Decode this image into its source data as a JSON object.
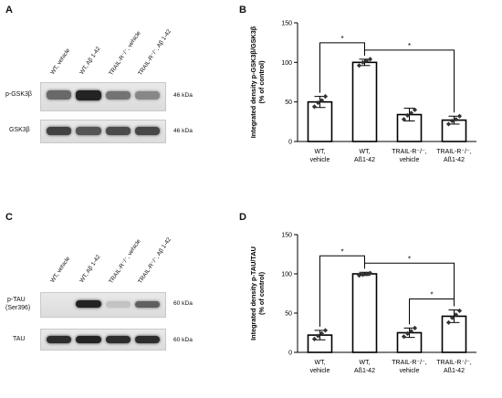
{
  "panels": {
    "a": {
      "letter": "A",
      "lanes": [
        "WT, vehicle",
        "WT, Aβ 1-42",
        "TRAIL-R⁻/⁻, vehicle",
        "TRAIL-R⁻/⁻, Aβ 1-42"
      ],
      "rows": [
        {
          "label": "p-GSK3β",
          "kda": "46 kDa",
          "band_intensity": [
            0.55,
            0.9,
            0.5,
            0.4
          ]
        },
        {
          "label": "GSK3β",
          "kda": "46 kDa",
          "band_intensity": [
            0.75,
            0.65,
            0.7,
            0.72
          ]
        }
      ]
    },
    "c": {
      "letter": "C",
      "lanes": [
        "WT, vehicle",
        "WT, Aβ 1-42",
        "TRAIL-R⁻/⁻, vehicle",
        "TRAIL-R⁻/⁻, Aβ 1-42"
      ],
      "rows": [
        {
          "label": "p-TAU",
          "label2": "(Ser396)",
          "kda": "60 kDa",
          "band_intensity": [
            0.0,
            0.9,
            0.1,
            0.6
          ]
        },
        {
          "label": "TAU",
          "kda": "60 kDa",
          "band_intensity": [
            0.85,
            0.9,
            0.85,
            0.85
          ]
        }
      ]
    }
  },
  "chart_data": [
    {
      "letter": "B",
      "type": "bar",
      "ylabel": "Integrated density p-GSK3β/GSK3β",
      "ylabel2": "(% of control)",
      "ylim": [
        0,
        150
      ],
      "yticks": [
        0,
        50,
        100,
        150
      ],
      "categories": [
        [
          "WT,",
          "vehicle"
        ],
        [
          "WT,",
          "Aß1-42"
        ],
        [
          "TRAIL-R⁻/⁻,",
          "vehicle"
        ],
        [
          "TRAIL-R⁻/⁻,",
          "Aß1-42"
        ]
      ],
      "values": [
        50,
        100,
        34,
        27
      ],
      "errors": [
        7,
        4,
        8,
        5
      ],
      "points": [
        [
          44,
          49,
          52,
          57
        ],
        [
          96,
          100,
          102,
          104
        ],
        [
          28,
          33,
          36,
          40
        ],
        [
          22,
          26,
          28,
          32
        ]
      ],
      "significance": [
        {
          "pair": [
            0,
            1
          ],
          "label": "*"
        },
        {
          "pair": [
            1,
            3
          ],
          "label": "*"
        }
      ]
    },
    {
      "letter": "D",
      "type": "bar",
      "ylabel": "Integrated density p-TAU/TAU",
      "ylabel2": "(% of control)",
      "ylim": [
        0,
        150
      ],
      "yticks": [
        0,
        50,
        100,
        150
      ],
      "categories": [
        [
          "WT,",
          "vehicle"
        ],
        [
          "WT,",
          "Aß1-42"
        ],
        [
          "TRAIL-R⁻/⁻,",
          "vehicle"
        ],
        [
          "TRAIL-R⁻/⁻,",
          "Aß1-42"
        ]
      ],
      "values": [
        22,
        100,
        25,
        46
      ],
      "errors": [
        6,
        2,
        6,
        8
      ],
      "points": [
        [
          17,
          21,
          24,
          28
        ],
        [
          98,
          99,
          100,
          101
        ],
        [
          20,
          24,
          27,
          31
        ],
        [
          38,
          44,
          48,
          53
        ]
      ],
      "significance": [
        {
          "pair": [
            0,
            1
          ],
          "label": "*"
        },
        {
          "pair": [
            1,
            3
          ],
          "label": "*"
        },
        {
          "pair": [
            2,
            3
          ],
          "label": "*"
        }
      ]
    }
  ]
}
